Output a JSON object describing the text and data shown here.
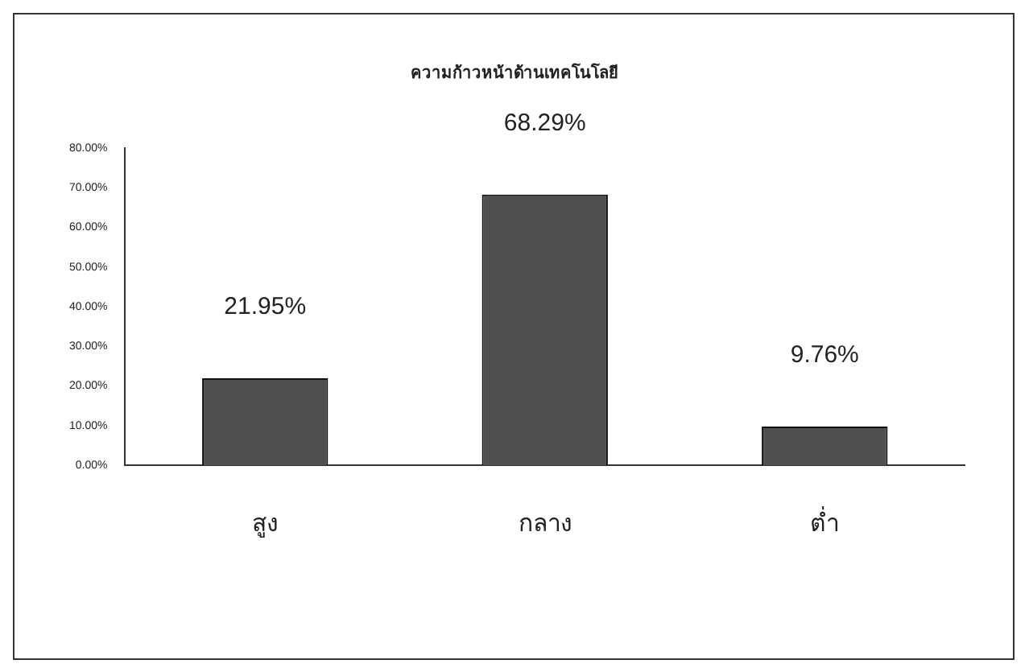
{
  "chart_data": {
    "type": "bar",
    "title": "ความก้าวหน้าด้านเทคโนโลยี",
    "categories": [
      "สูง",
      "กลาง",
      "ต่ำ"
    ],
    "values": [
      21.95,
      68.29,
      9.76
    ],
    "color": "#505050",
    "value_labels": [
      "21.95%",
      "68.29%",
      "9.76%"
    ],
    "ylim": [
      0,
      80
    ],
    "yticks": [
      {
        "value": 0,
        "label": "0.00%"
      },
      {
        "value": 10,
        "label": "10.00%"
      },
      {
        "value": 20,
        "label": "20.00%"
      },
      {
        "value": 30,
        "label": "30.00%"
      },
      {
        "value": 40,
        "label": "40.00%"
      },
      {
        "value": 50,
        "label": "50.00%"
      },
      {
        "value": 60,
        "label": "60.00%"
      },
      {
        "value": 70,
        "label": "70.00%"
      },
      {
        "value": 80,
        "label": "80.00%"
      }
    ],
    "grid": false,
    "legend": false
  }
}
